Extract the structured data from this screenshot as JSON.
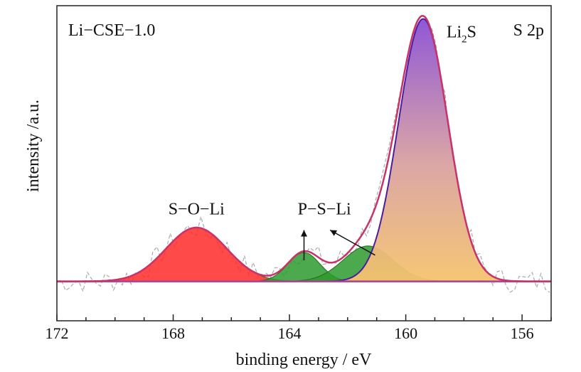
{
  "chart_data": {
    "type": "area",
    "title": "",
    "xlabel": "binding energy / eV",
    "ylabel": "intensity /a.u.",
    "xlim": [
      172,
      155
    ],
    "x_reversed": true,
    "ylim": [
      -0.15,
      1.05
    ],
    "x_ticks": [
      172,
      168,
      164,
      160,
      156
    ],
    "y_ticks_visible": false,
    "grid": false,
    "legend": "none",
    "sample_label": "Li−CSE−1.0",
    "region_label": "S 2p",
    "series": [
      {
        "component": "S−O−Li",
        "center": 167.2,
        "height": 0.205,
        "sigma": 1.05,
        "color": "#ff2a2a"
      },
      {
        "component": "P−S−Li",
        "center": 163.5,
        "height": 0.11,
        "sigma": 0.55,
        "color": "#2e9a2e"
      },
      {
        "component": "P−S−Li",
        "center": 161.3,
        "height": 0.135,
        "sigma": 0.85,
        "color": "#2e9a2e"
      },
      {
        "component": "Li2S",
        "center": 159.4,
        "height": 1.0,
        "sigma": 0.85,
        "color_top": "#8a4fd4",
        "color_bottom": "#f5c36e"
      }
    ],
    "annotations": [
      {
        "text": "S−O−Li",
        "x": 167.2,
        "y": 0.255
      },
      {
        "text": "P−S−Li",
        "x": 162.8,
        "y": 0.255
      },
      {
        "text_main": "Li",
        "text_sub": "2",
        "text_tail": "S",
        "x": 158.6,
        "y": 0.93
      }
    ],
    "colors": {
      "envelope": "#c8336a",
      "raw": "#aaaaaa",
      "baseline": "#b04090",
      "li2s_edge": "#4a1ea0"
    }
  }
}
